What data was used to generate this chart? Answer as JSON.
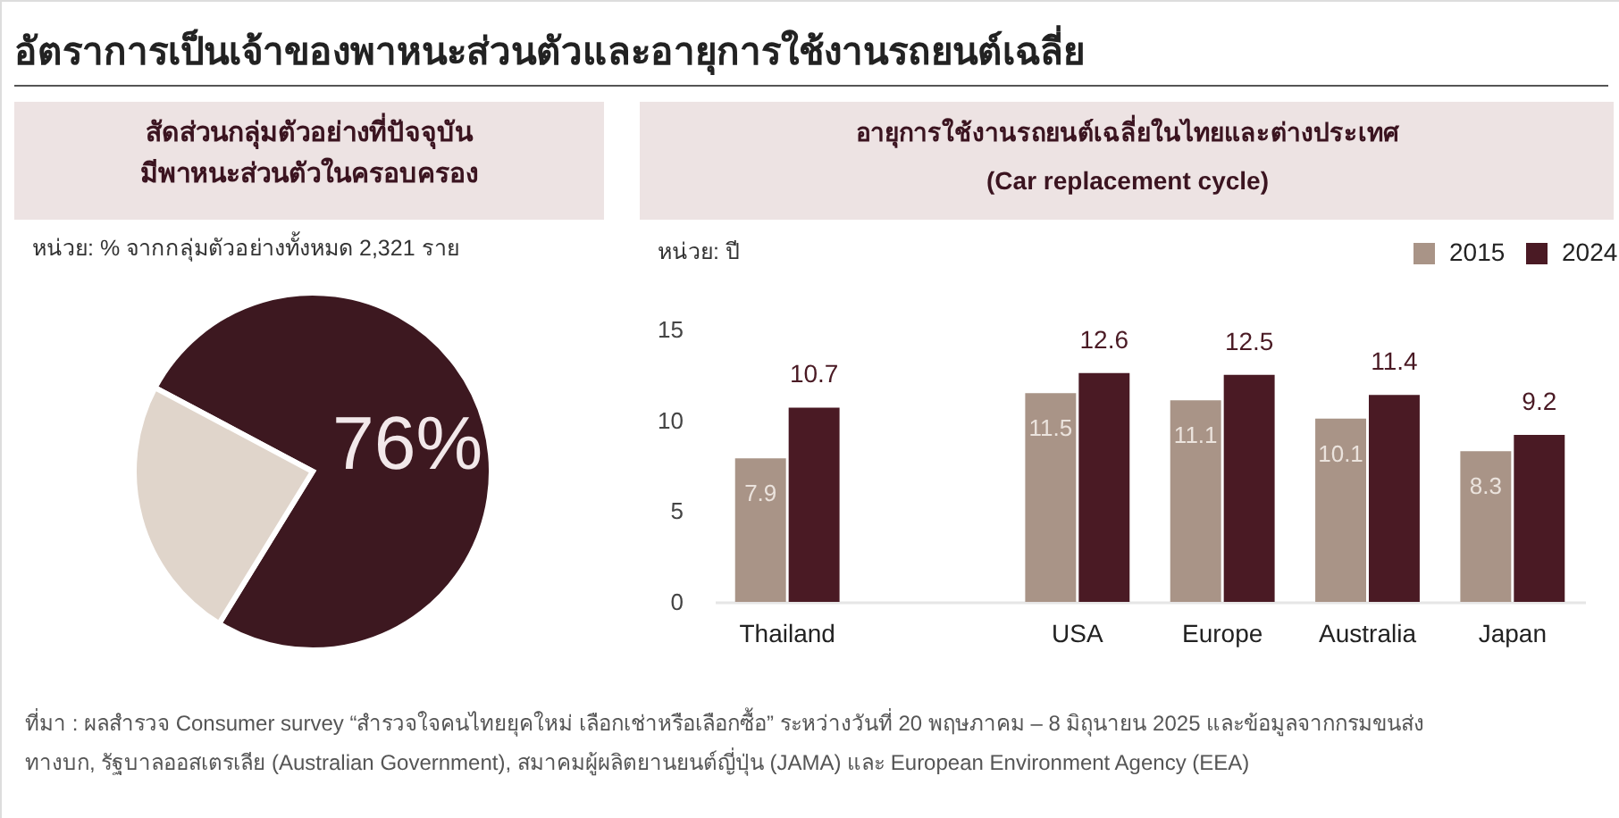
{
  "chart_data": [
    {
      "type": "other",
      "title": "อัตราการเป็นเจ้าของพาหนะส่วนตัวและอายุการใช้งานรถยนต์เฉลี่ย",
      "annotations": [
        "ที่มา : ผลสำรวจ Consumer survey “สำรวจใจคนไทยยุคใหม่ เลือกเช่าหรือเลือกซื้อ” ระหว่างวันที่ 20 พฤษภาคม – 8 มิถุนายน 2025 และข้อมูลจากกรมขนส่ง\nทางบก, รัฐบาลออสเตรเลีย (Australian Government), สมาคมผู้ผลิตยานยนต์ญี่ปุ่น (JAMA) และ European Environment Agency (EEA)"
      ]
    },
    {
      "type": "pie",
      "title": "สัดส่วนกลุ่มตัวอย่างที่ปัจจุบัน\nมีพาหนะส่วนตัวในครอบครอง",
      "subtitle": "หน่วย: % จากกลุ่มตัวอย่างทั้งหมด 2,321 ราย",
      "categories": [
        null,
        null
      ],
      "values": [
        76,
        24
      ],
      "colors": [
        "#3d1820",
        "#e0d5cb"
      ],
      "value_labels": [
        "76%",
        null
      ]
    },
    {
      "type": "bar",
      "title": "อายุการใช้งานรถยนต์เฉลี่ยในไทยและต่างประเทศ\n(Car replacement cycle)",
      "ylabel": "หน่วย: ปี",
      "categories": [
        "Thailand",
        null,
        "USA",
        "Europe",
        "Australia",
        "Japan"
      ],
      "series": [
        {
          "name": "2015",
          "color": "#a99487",
          "values": [
            7.9,
            null,
            11.5,
            11.1,
            10.1,
            8.3
          ]
        },
        {
          "name": "2024",
          "color": "#4a1a24",
          "values": [
            10.7,
            null,
            12.6,
            12.5,
            11.4,
            9.2
          ]
        }
      ],
      "ylim": [
        0,
        15
      ],
      "yticks": [
        0,
        5,
        10,
        15
      ],
      "data_labels": true,
      "legend": "top right",
      "grid": false
    }
  ]
}
